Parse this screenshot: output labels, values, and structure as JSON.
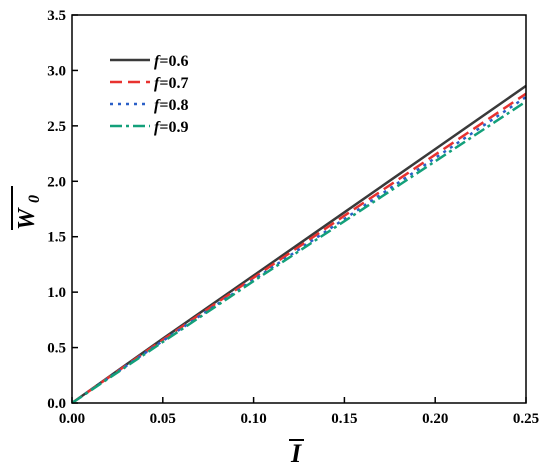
{
  "chart_data": {
    "type": "line",
    "x_label": "I",
    "y_label": "W",
    "y_label_sub": "0",
    "xlim": [
      0.0,
      0.25
    ],
    "ylim": [
      0.0,
      3.5
    ],
    "x_ticks": [
      0.0,
      0.05,
      0.1,
      0.15,
      0.2,
      0.25
    ],
    "x_tick_labels": [
      "0.00",
      "0.05",
      "0.10",
      "0.15",
      "0.20",
      "0.25"
    ],
    "y_ticks": [
      0.0,
      0.5,
      1.0,
      1.5,
      2.0,
      2.5,
      3.0,
      3.5
    ],
    "y_tick_labels": [
      "0.0",
      "0.5",
      "1.0",
      "1.5",
      "2.0",
      "2.5",
      "3.0",
      "3.5"
    ],
    "grid": false,
    "legend_position": "top-left",
    "series": [
      {
        "name": "0.6",
        "legend_prefix": "f",
        "color": "#3a3a3a",
        "dash": "solid",
        "x": [
          0,
          0.05,
          0.1,
          0.15,
          0.2,
          0.25
        ],
        "y": [
          0,
          0.58,
          1.15,
          1.72,
          2.29,
          2.86
        ]
      },
      {
        "name": "0.7",
        "legend_prefix": "f",
        "color": "#e8322f",
        "dash": "dash",
        "x": [
          0,
          0.05,
          0.1,
          0.15,
          0.2,
          0.25
        ],
        "y": [
          0,
          0.57,
          1.13,
          1.69,
          2.24,
          2.79
        ]
      },
      {
        "name": "0.8",
        "legend_prefix": "f",
        "color": "#2a5fc7",
        "dash": "dot",
        "x": [
          0,
          0.05,
          0.1,
          0.15,
          0.2,
          0.25
        ],
        "y": [
          0,
          0.56,
          1.11,
          1.66,
          2.21,
          2.76
        ]
      },
      {
        "name": "0.9",
        "legend_prefix": "f",
        "color": "#13a07a",
        "dash": "dashdot",
        "x": [
          0,
          0.05,
          0.1,
          0.15,
          0.2,
          0.25
        ],
        "y": [
          0,
          0.55,
          1.1,
          1.64,
          2.18,
          2.72
        ]
      }
    ]
  }
}
